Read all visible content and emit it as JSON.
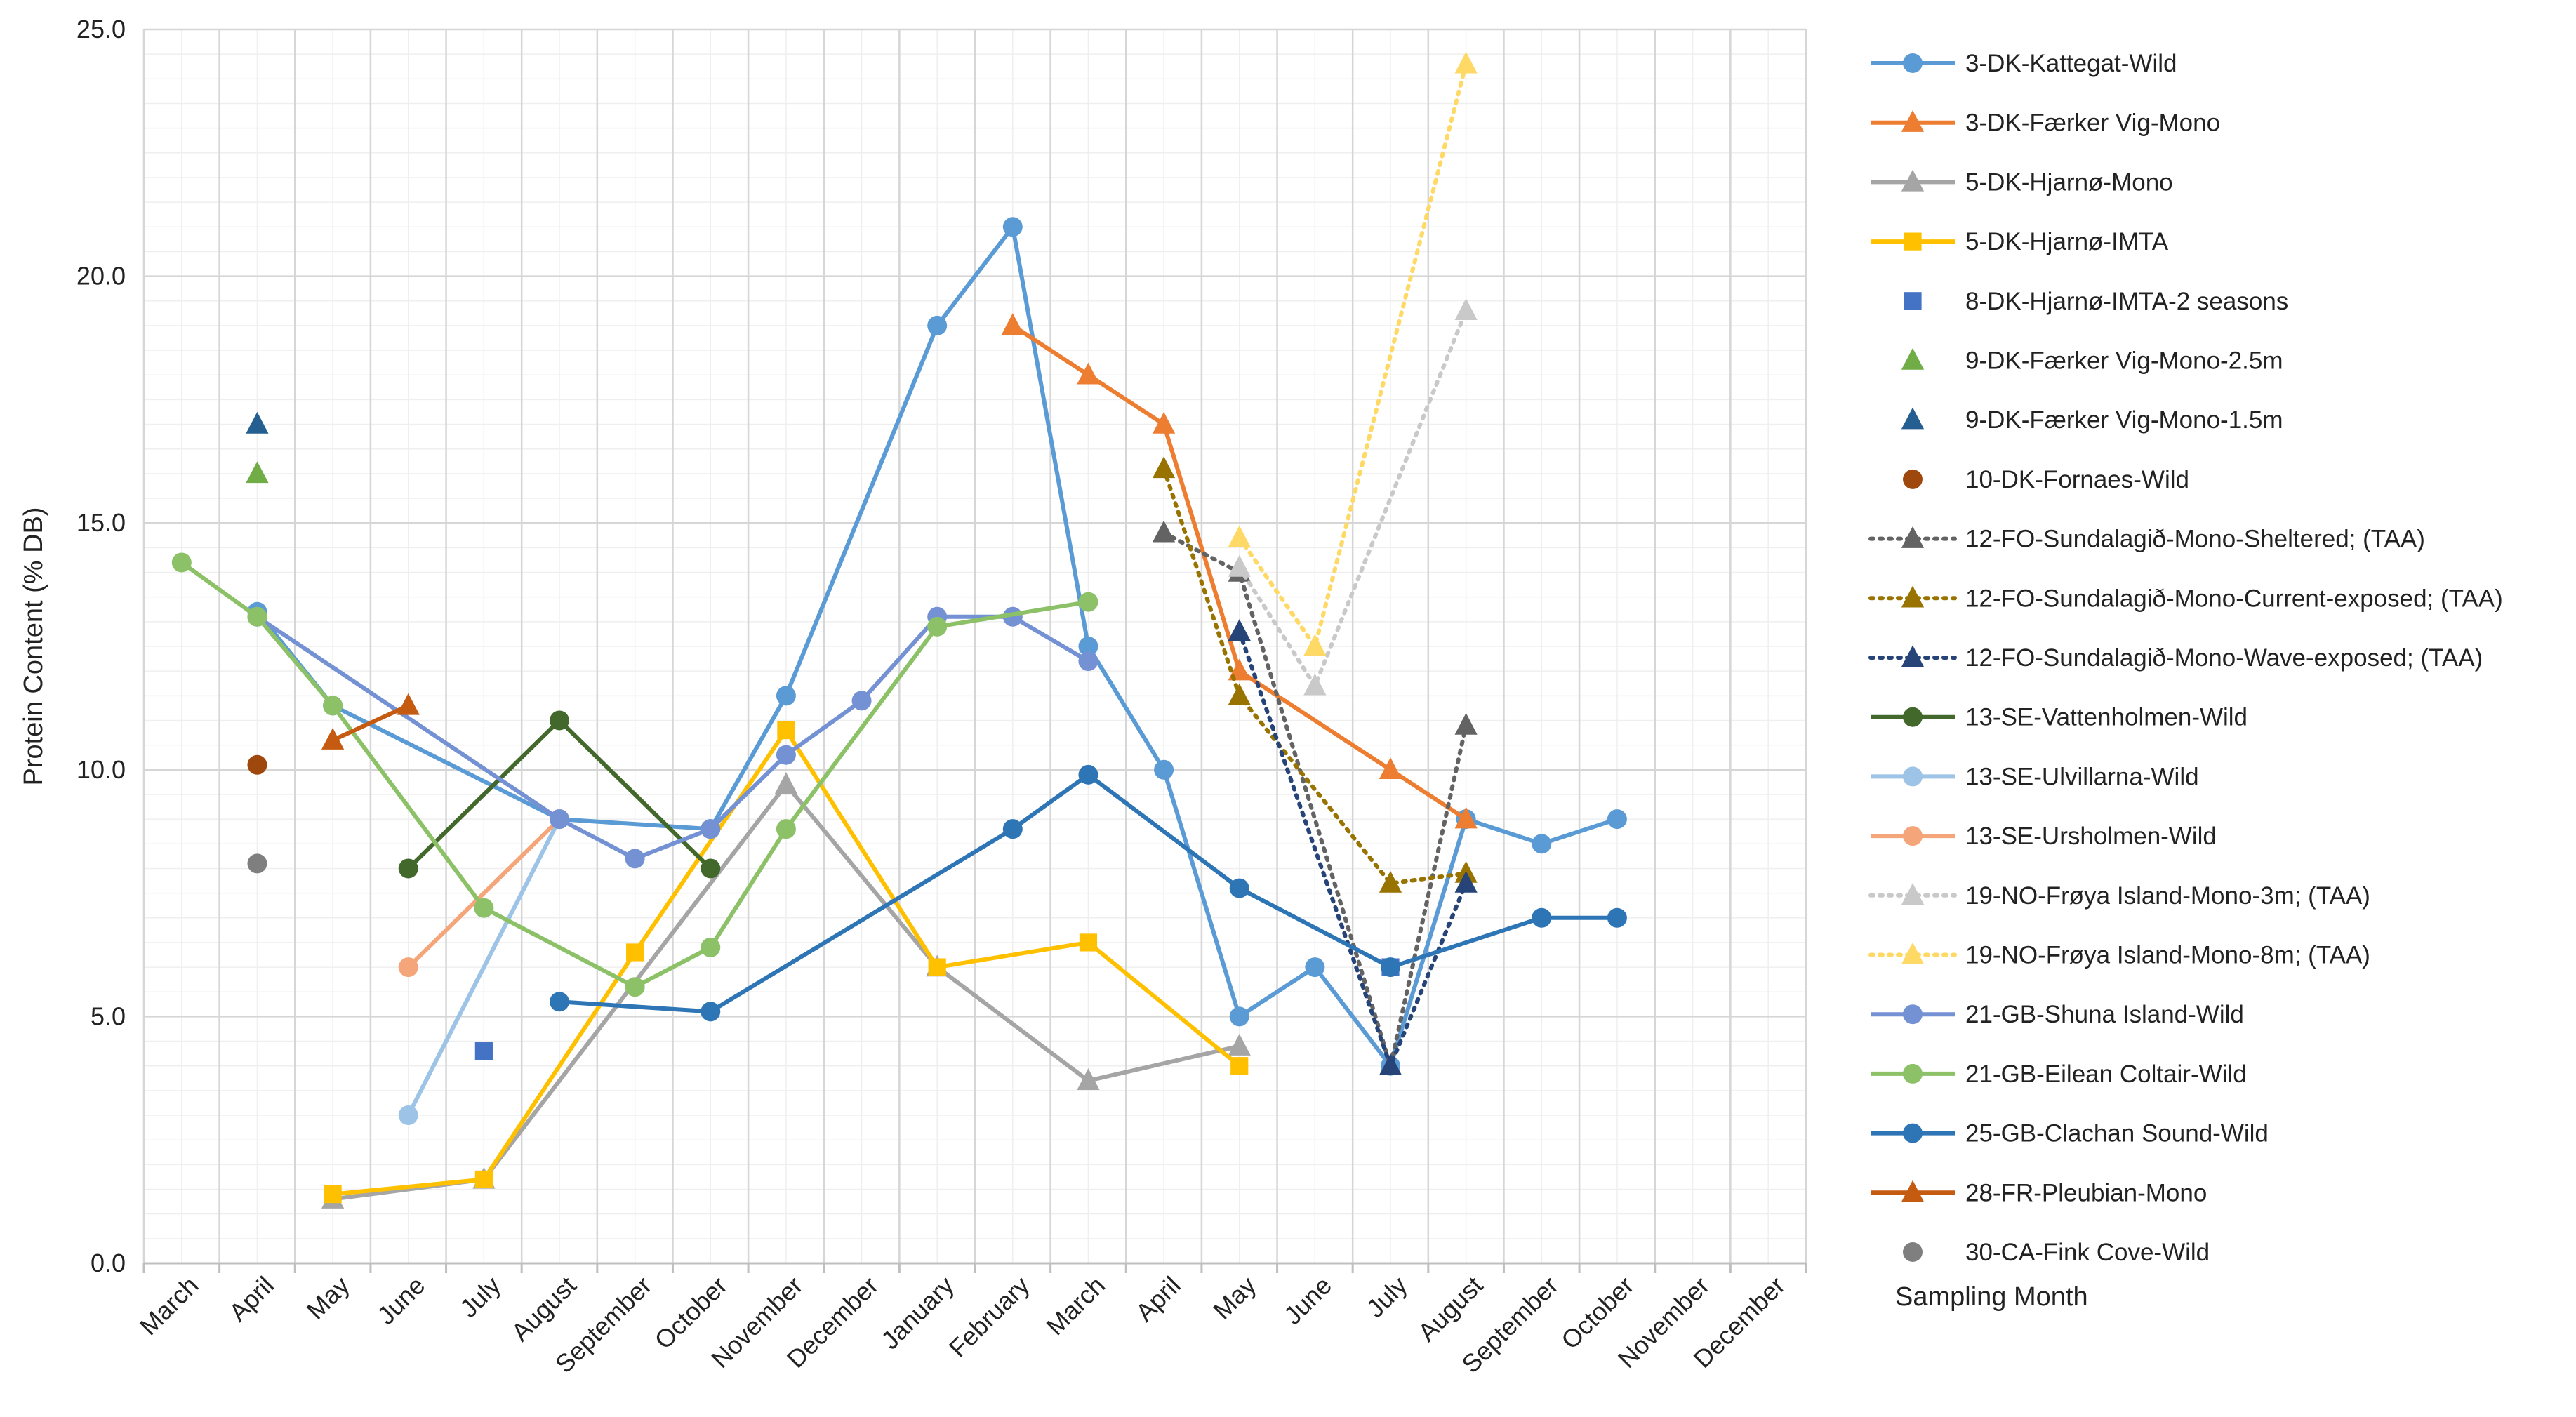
{
  "chart_data": {
    "type": "line",
    "title": "",
    "xlabel": "Sampling Month",
    "ylabel": "Protein Content (% DB)",
    "ylim": [
      0,
      25
    ],
    "yticks": [
      "0.0",
      "5.0",
      "10.0",
      "15.0",
      "20.0",
      "25.0"
    ],
    "categories": [
      "March",
      "April",
      "May",
      "June",
      "July",
      "August",
      "September",
      "October",
      "November",
      "December",
      "January",
      "February",
      "March",
      "April",
      "May",
      "June",
      "July",
      "August",
      "September",
      "October",
      "November",
      "December"
    ],
    "grid": true,
    "legend_position": "right",
    "series": [
      {
        "name": "3-DK-Kattegat-Wild",
        "color": "#5B9BD5",
        "marker": "circle",
        "line": "solid",
        "points": [
          [
            1,
            13.2
          ],
          [
            2,
            11.3
          ],
          [
            5,
            9.0
          ],
          [
            7,
            8.8
          ],
          [
            8,
            11.5
          ],
          [
            10,
            19.0
          ],
          [
            11,
            21.0
          ],
          [
            12,
            12.5
          ],
          [
            13,
            10.0
          ],
          [
            14,
            5.0
          ],
          [
            15,
            6.0
          ],
          [
            16,
            4.0
          ],
          [
            17,
            9.0
          ],
          [
            18,
            8.5
          ],
          [
            19,
            9.0
          ]
        ]
      },
      {
        "name": "3-DK-Færker Vig-Mono",
        "color": "#ED7D31",
        "marker": "triangle",
        "line": "solid",
        "points": [
          [
            11,
            19.0
          ],
          [
            12,
            18.0
          ],
          [
            13,
            17.0
          ],
          [
            14,
            12.0
          ],
          [
            16,
            10.0
          ],
          [
            17,
            9.0
          ]
        ]
      },
      {
        "name": "5-DK-Hjarnø-Mono",
        "color": "#A5A5A5",
        "marker": "triangle",
        "line": "solid",
        "points": [
          [
            2,
            1.3
          ],
          [
            4,
            1.7
          ],
          [
            8,
            9.7
          ],
          [
            10,
            6.0
          ],
          [
            12,
            3.7
          ],
          [
            14,
            4.4
          ]
        ]
      },
      {
        "name": "5-DK-Hjarnø-IMTA",
        "color": "#FFC000",
        "marker": "square",
        "line": "solid",
        "points": [
          [
            2,
            1.4
          ],
          [
            4,
            1.7
          ],
          [
            6,
            6.3
          ],
          [
            8,
            10.8
          ],
          [
            10,
            6.0
          ],
          [
            12,
            6.5
          ],
          [
            14,
            4.0
          ]
        ]
      },
      {
        "name": "8-DK-Hjarnø-IMTA-2 seasons",
        "color": "#4472C4",
        "marker": "square",
        "line": "none",
        "points": [
          [
            4,
            4.3
          ],
          [
            16,
            6.0
          ]
        ]
      },
      {
        "name": "9-DK-Færker Vig-Mono-2.5m",
        "color": "#70AD47",
        "marker": "triangle",
        "line": "none",
        "points": [
          [
            1,
            16.0
          ]
        ]
      },
      {
        "name": "9-DK-Færker Vig-Mono-1.5m",
        "color": "#255E91",
        "marker": "triangle",
        "line": "none",
        "points": [
          [
            1,
            17.0
          ],
          [
            14,
            12.8
          ]
        ]
      },
      {
        "name": "10-DK-Fornaes-Wild",
        "color": "#9E480E",
        "marker": "circle",
        "line": "none",
        "points": [
          [
            1,
            10.1
          ]
        ]
      },
      {
        "name": "12-FO-Sundalagið-Mono-Sheltered; (TAA)",
        "color": "#636363",
        "marker": "triangle",
        "line": "dotted",
        "points": [
          [
            13,
            14.8
          ],
          [
            14,
            14.0
          ],
          [
            16,
            4.0
          ],
          [
            17,
            10.9
          ]
        ]
      },
      {
        "name": "12-FO-Sundalagið-Mono-Current-exposed; (TAA)",
        "color": "#997300",
        "marker": "triangle",
        "line": "dotted",
        "points": [
          [
            13,
            16.1
          ],
          [
            14,
            11.5
          ],
          [
            16,
            7.7
          ],
          [
            17,
            7.9
          ]
        ]
      },
      {
        "name": "12-FO-Sundalagið-Mono-Wave-exposed; (TAA)",
        "color": "#264478",
        "marker": "triangle",
        "line": "dotted",
        "points": [
          [
            14,
            12.8
          ],
          [
            16,
            4.0
          ],
          [
            17,
            7.7
          ]
        ]
      },
      {
        "name": "13-SE-Vattenholmen-Wild",
        "color": "#43682B",
        "marker": "circle",
        "line": "solid",
        "points": [
          [
            3,
            8.0
          ],
          [
            5,
            11.0
          ],
          [
            7,
            8.0
          ]
        ]
      },
      {
        "name": "13-SE-Ulvillarna-Wild",
        "color": "#9DC3E6",
        "marker": "circle",
        "line": "solid",
        "points": [
          [
            3,
            3.0
          ],
          [
            5,
            9.0
          ]
        ]
      },
      {
        "name": "13-SE-Ursholmen-Wild",
        "color": "#F4A67A",
        "marker": "circle",
        "line": "solid",
        "points": [
          [
            3,
            6.0
          ],
          [
            5,
            9.0
          ]
        ]
      },
      {
        "name": "19-NO-Frøya Island-Mono-3m; (TAA)",
        "color": "#C9C9C9",
        "marker": "triangle",
        "line": "dotted",
        "points": [
          [
            14,
            14.1
          ],
          [
            15,
            11.7
          ],
          [
            17,
            19.3
          ]
        ]
      },
      {
        "name": "19-NO-Frøya Island-Mono-8m; (TAA)",
        "color": "#FFD966",
        "marker": "triangle",
        "line": "dotted",
        "points": [
          [
            14,
            14.7
          ],
          [
            15,
            12.5
          ],
          [
            17,
            24.3
          ]
        ]
      },
      {
        "name": "21-GB-Shuna Island-Wild",
        "color": "#7491D4",
        "marker": "circle",
        "line": "solid",
        "points": [
          [
            1,
            13.1
          ],
          [
            5,
            9.0
          ],
          [
            6,
            8.2
          ],
          [
            7,
            8.8
          ],
          [
            8,
            10.3
          ],
          [
            9,
            11.4
          ],
          [
            10,
            13.1
          ],
          [
            11,
            13.1
          ],
          [
            12,
            12.2
          ]
        ]
      },
      {
        "name": "21-GB-Eilean Coltair-Wild",
        "color": "#8CC168",
        "marker": "circle",
        "line": "solid",
        "points": [
          [
            0,
            14.2
          ],
          [
            1,
            13.1
          ],
          [
            2,
            11.3
          ],
          [
            4,
            7.2
          ],
          [
            6,
            5.6
          ],
          [
            7,
            6.4
          ],
          [
            8,
            8.8
          ],
          [
            10,
            12.9
          ],
          [
            12,
            13.4
          ]
        ]
      },
      {
        "name": "25-GB-Clachan Sound-Wild",
        "color": "#2E75B6",
        "marker": "circle",
        "line": "solid",
        "points": [
          [
            5,
            5.3
          ],
          [
            7,
            5.1
          ],
          [
            11,
            8.8
          ],
          [
            12,
            9.9
          ],
          [
            14,
            7.6
          ],
          [
            16,
            6.0
          ],
          [
            18,
            7.0
          ],
          [
            19,
            7.0
          ]
        ]
      },
      {
        "name": "28-FR-Pleubian-Mono",
        "color": "#C55A11",
        "marker": "triangle",
        "line": "solid",
        "points": [
          [
            2,
            10.6
          ],
          [
            3,
            11.3
          ]
        ]
      },
      {
        "name": "30-CA-Fink Cove-Wild",
        "color": "#7F7F7F",
        "marker": "circle",
        "line": "none",
        "points": [
          [
            1,
            8.1
          ]
        ]
      }
    ]
  }
}
